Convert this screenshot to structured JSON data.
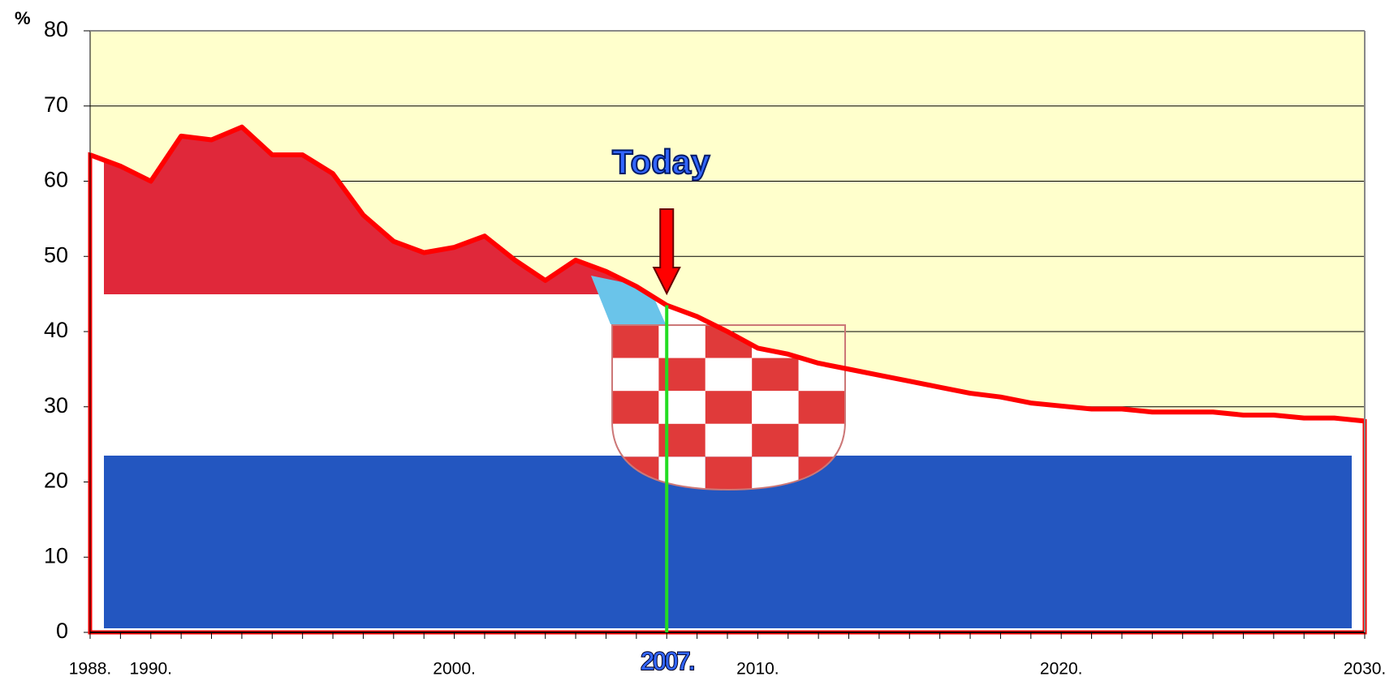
{
  "chart_data": {
    "type": "area",
    "y_label": "%",
    "x": [
      1988,
      1989,
      1990,
      1991,
      1992,
      1993,
      1994,
      1995,
      1996,
      1997,
      1998,
      1999,
      2000,
      2001,
      2002,
      2003,
      2004,
      2005,
      2006,
      2007,
      2008,
      2009,
      2010,
      2011,
      2012,
      2013,
      2014,
      2015,
      2016,
      2017,
      2018,
      2019,
      2020,
      2021,
      2022,
      2023,
      2024,
      2025,
      2026,
      2027,
      2028,
      2029,
      2030
    ],
    "series": [
      {
        "color": "#ff0000",
        "values": [
          63.5,
          62,
          60,
          66,
          65.5,
          67.2,
          63.5,
          63.5,
          61,
          55.5,
          52,
          50.5,
          51.2,
          52.7,
          49.5,
          46.8,
          49.5,
          48,
          46,
          43.5,
          42,
          40,
          37.8,
          37,
          35.8,
          35,
          34.2,
          33.4,
          32.6,
          31.8,
          31.3,
          30.5,
          30.1,
          29.7,
          29.7,
          29.3,
          29.3,
          29.3,
          28.9,
          28.9,
          28.5,
          28.5,
          28.1
        ]
      }
    ],
    "xlim": [
      1988,
      2030
    ],
    "xticks": [
      {
        "value": 1988,
        "label": "1988."
      },
      {
        "value": 1990,
        "label": "1990."
      },
      {
        "value": 2000,
        "label": "2000."
      },
      {
        "value": 2007,
        "label": "2007."
      },
      {
        "value": 2010,
        "label": "2010."
      },
      {
        "value": 2020,
        "label": "2020."
      },
      {
        "value": 2030,
        "label": "2030."
      }
    ],
    "ylim": [
      0,
      80
    ],
    "yticks": [
      0,
      10,
      20,
      30,
      40,
      50,
      60,
      70,
      80
    ],
    "grid": true,
    "background": "#ffffcc",
    "annotations": [
      {
        "text": "Today",
        "x": 2007,
        "color": "#3366ff"
      }
    ]
  }
}
